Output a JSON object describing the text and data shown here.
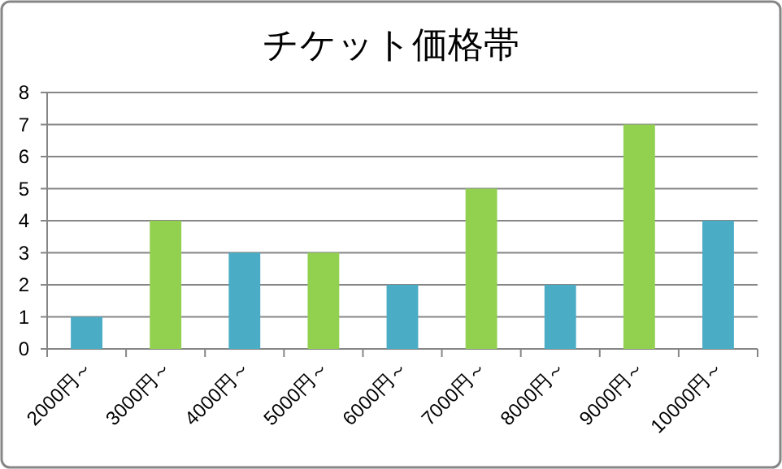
{
  "chart_data": {
    "type": "bar",
    "title": "チケット価格帯",
    "categories": [
      "2000円～",
      "3000円～",
      "4000円～",
      "5000円～",
      "6000円～",
      "7000円～",
      "8000円～",
      "9000円～",
      "10000円～"
    ],
    "values": [
      1,
      4,
      3,
      3,
      2,
      5,
      2,
      7,
      4
    ],
    "colors": [
      "#4bacc6",
      "#92d050",
      "#4bacc6",
      "#92d050",
      "#4bacc6",
      "#92d050",
      "#4bacc6",
      "#92d050",
      "#4bacc6"
    ],
    "ylim": [
      0,
      8
    ],
    "yticks": [
      0,
      1,
      2,
      3,
      4,
      5,
      6,
      7,
      8
    ],
    "grid": "y"
  }
}
